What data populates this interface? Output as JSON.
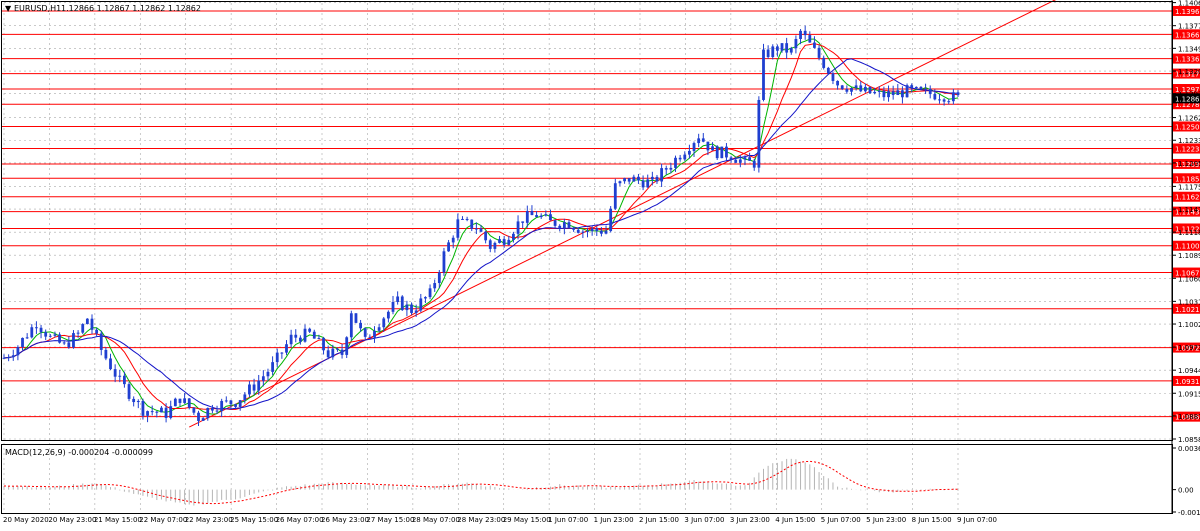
{
  "header": {
    "symbol_label": "EURUSD,H1",
    "ohlc": "1.12866 1.12867 1.12862 1.12862"
  },
  "macd_label": "MACD(12,26,9) -0.000204 -0.000099",
  "chart_data": {
    "type": "candlestick",
    "symbol": "EURUSD",
    "timeframe": "H1",
    "y_range": [
      1.0858,
      1.1406
    ],
    "price_ticks": [
      "1.14065",
      "1.13775",
      "1.13490",
      "1.13205",
      "1.12920",
      "1.12620",
      "1.12335",
      "1.12050",
      "1.11755",
      "1.11470",
      "1.11180",
      "1.10890",
      "1.10600",
      "1.10310",
      "1.10025",
      "1.09735",
      "1.09445",
      "1.09155",
      "1.08870",
      "1.08580"
    ],
    "levels": [
      1.1396,
      1.13666,
      1.13361,
      1.13173,
      1.12979,
      1.12788,
      1.12508,
      1.12231,
      1.12037,
      1.11857,
      1.11625,
      1.11438,
      1.11226,
      1.11009,
      1.10672,
      1.10217,
      1.09729,
      1.0931,
      1.08861
    ],
    "current_price": "1.12862",
    "x_labels": [
      "20 May 2020",
      "20 May 23:00",
      "21 May 15:00",
      "22 May 07:00",
      "22 May 23:00",
      "25 May 15:00",
      "26 May 07:00",
      "26 May 23:00",
      "27 May 15:00",
      "28 May 07:00",
      "28 May 23:00",
      "29 May 15:00",
      "1 Jun 07:00",
      "1 Jun 23:00",
      "2 Jun 15:00",
      "3 Jun 07:00",
      "3 Jun 23:00",
      "4 Jun 15:00",
      "5 Jun 07:00",
      "5 Jun 23:00",
      "8 Jun 15:00",
      "9 Jun 07:00"
    ],
    "price_path": [
      [
        0,
        1.096
      ],
      [
        3,
        1.0975
      ],
      [
        7,
        1.1005
      ],
      [
        10,
        1.0985
      ],
      [
        13,
        1.0975
      ],
      [
        16,
        1.099
      ],
      [
        18,
        1.101
      ],
      [
        21,
        1.097
      ],
      [
        25,
        1.093
      ],
      [
        30,
        1.0895
      ],
      [
        35,
        1.089
      ],
      [
        38,
        1.091
      ],
      [
        42,
        1.0885
      ],
      [
        45,
        1.09
      ],
      [
        50,
        1.0905
      ],
      [
        54,
        1.0925
      ],
      [
        58,
        1.095
      ],
      [
        62,
        1.0985
      ],
      [
        66,
        1.099
      ],
      [
        70,
        1.0965
      ],
      [
        73,
        1.0965
      ],
      [
        75,
        1.102
      ],
      [
        78,
        1.098
      ],
      [
        80,
        1.1
      ],
      [
        85,
        1.103
      ],
      [
        88,
        1.102
      ],
      [
        92,
        1.104
      ],
      [
        95,
        1.109
      ],
      [
        98,
        1.113
      ],
      [
        102,
        1.1125
      ],
      [
        105,
        1.11
      ],
      [
        108,
        1.111
      ],
      [
        112,
        1.1135
      ],
      [
        115,
        1.114
      ],
      [
        118,
        1.113
      ],
      [
        122,
        1.113
      ],
      [
        125,
        1.112
      ],
      [
        130,
        1.112
      ],
      [
        132,
        1.1175
      ],
      [
        135,
        1.1185
      ],
      [
        140,
        1.118
      ],
      [
        145,
        1.121
      ],
      [
        150,
        1.124
      ],
      [
        153,
        1.122
      ],
      [
        157,
        1.1215
      ],
      [
        160,
        1.1205
      ],
      [
        162,
        1.1205
      ],
      [
        163,
        1.128
      ],
      [
        164,
        1.134
      ],
      [
        167,
        1.135
      ],
      [
        170,
        1.1345
      ],
      [
        172,
        1.137
      ],
      [
        175,
        1.1345
      ],
      [
        177,
        1.133
      ],
      [
        180,
        1.1305
      ],
      [
        185,
        1.1295
      ],
      [
        190,
        1.129
      ],
      [
        195,
        1.1295
      ],
      [
        200,
        1.1292
      ],
      [
        203,
        1.129
      ],
      [
        206,
        1.1286
      ]
    ],
    "total_bars": 207,
    "macd_ticks": [
      "0.003685",
      "0.00",
      "-0.00198"
    ],
    "macd_range": [
      -0.00198,
      0.003685
    ],
    "macd_path": [
      [
        0,
        0.0004
      ],
      [
        10,
        0.0002
      ],
      [
        20,
        0.0006
      ],
      [
        30,
        -0.0006
      ],
      [
        40,
        -0.0014
      ],
      [
        50,
        -0.0008
      ],
      [
        60,
        0.0002
      ],
      [
        70,
        0.0006
      ],
      [
        80,
        0.0004
      ],
      [
        90,
        0.0002
      ],
      [
        100,
        0.0006
      ],
      [
        110,
        0.0
      ],
      [
        120,
        0.0004
      ],
      [
        130,
        0.0002
      ],
      [
        140,
        0.0004
      ],
      [
        150,
        0.0008
      ],
      [
        160,
        0.0003
      ],
      [
        165,
        0.0022
      ],
      [
        170,
        0.0028
      ],
      [
        175,
        0.002
      ],
      [
        180,
        0.0002
      ],
      [
        190,
        -0.0002
      ],
      [
        200,
        0.0
      ],
      [
        206,
        0.0
      ]
    ],
    "colors": {
      "candle": "#1f3fd0",
      "levels": "#ff0000",
      "ma_fast": "#00b400",
      "ma_mid": "#ff0000",
      "ma_slow": "#1414c8",
      "macd_hist": "#b4b4b4",
      "macd_signal": "#ff0000",
      "grid": "#a9a9a9"
    }
  }
}
